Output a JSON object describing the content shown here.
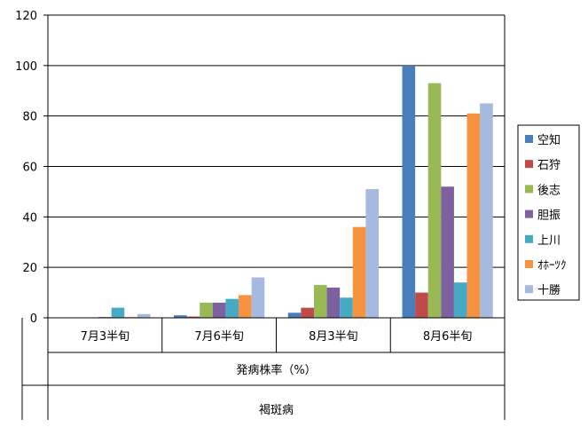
{
  "chart_data": {
    "type": "bar",
    "categories": [
      "7月3半旬",
      "7月6半旬",
      "8月3半旬",
      "8月6半旬"
    ],
    "category_group_labels": [
      "発病株率（%）",
      "褐斑病"
    ],
    "series": [
      {
        "name": "空知",
        "color": "#4a7ebb",
        "values": [
          0,
          1,
          2,
          100
        ]
      },
      {
        "name": "石狩",
        "color": "#be4b48",
        "values": [
          0,
          0.5,
          4,
          10
        ]
      },
      {
        "name": "後志",
        "color": "#98b954",
        "values": [
          0,
          6,
          13,
          93
        ]
      },
      {
        "name": "胆振",
        "color": "#7d60a0",
        "values": [
          0.3,
          6,
          12,
          52
        ]
      },
      {
        "name": "上川",
        "color": "#46aac5",
        "values": [
          4,
          7.5,
          8,
          14
        ]
      },
      {
        "name": "ｵﾎｰﾂｸ",
        "color": "#f69240",
        "values": [
          0.3,
          9,
          36,
          81
        ]
      },
      {
        "name": "十勝",
        "color": "#a6b9de",
        "values": [
          1.5,
          16,
          51,
          85
        ]
      }
    ],
    "y_ticks": [
      "0",
      "20",
      "40",
      "60",
      "80",
      "100",
      "120"
    ],
    "ylim": [
      0,
      120
    ],
    "grid": true,
    "legend_position": "right"
  }
}
